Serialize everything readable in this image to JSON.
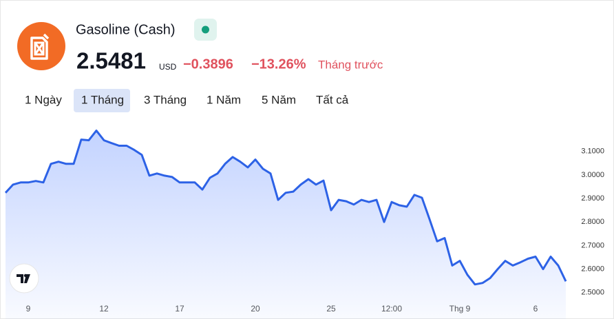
{
  "header": {
    "title": "Gasoline (Cash)",
    "price": "2.5481",
    "currency": "USD",
    "change": "−0.3896",
    "change_percent": "−13.26%",
    "period": "Tháng trước"
  },
  "tabs": [
    "1 Ngày",
    "1 Tháng",
    "3 Tháng",
    "1 Năm",
    "5 Năm",
    "Tất cả"
  ],
  "chart_data": {
    "type": "line",
    "color": "#2d62e6",
    "categories": [
      null,
      null,
      null,
      "9",
      null,
      null,
      null,
      null,
      null,
      null,
      null,
      null,
      null,
      "12",
      null,
      null,
      null,
      null,
      null,
      null,
      null,
      null,
      null,
      "17",
      null,
      null,
      null,
      null,
      null,
      null,
      null,
      null,
      null,
      "20",
      null,
      null,
      null,
      null,
      null,
      null,
      null,
      null,
      null,
      "25",
      null,
      null,
      null,
      null,
      null,
      null,
      null,
      "12:00",
      null,
      null,
      null,
      null,
      null,
      null,
      null,
      null,
      "Thg 9",
      null,
      null,
      null,
      null,
      null,
      null,
      null,
      null,
      null,
      "6",
      null,
      null,
      null,
      null
    ],
    "values": [
      2.924,
      2.959,
      2.968,
      2.968,
      2.974,
      2.968,
      3.047,
      3.056,
      3.047,
      3.047,
      3.15,
      3.147,
      3.188,
      3.147,
      3.135,
      3.124,
      3.124,
      3.106,
      3.085,
      2.997,
      3.006,
      2.997,
      2.991,
      2.968,
      2.968,
      2.968,
      2.938,
      2.988,
      3.006,
      3.047,
      3.076,
      3.056,
      3.032,
      3.065,
      3.026,
      3.006,
      2.894,
      2.924,
      2.929,
      2.959,
      2.982,
      2.959,
      2.976,
      2.85,
      2.894,
      2.888,
      2.874,
      2.894,
      2.885,
      2.894,
      2.8,
      2.885,
      2.871,
      2.865,
      2.915,
      2.903,
      2.812,
      2.718,
      2.732,
      2.615,
      2.635,
      2.576,
      2.535,
      2.541,
      2.562,
      2.6,
      2.635,
      2.615,
      2.629,
      2.644,
      2.653,
      2.6,
      2.653,
      2.615,
      2.5481
    ],
    "ylim": [
      2.47,
      3.26
    ],
    "yticks": [
      {
        "value": 2.5,
        "label": "2.5000"
      },
      {
        "value": 2.6,
        "label": "2.6000"
      },
      {
        "value": 2.7,
        "label": "2.7000"
      },
      {
        "value": 2.8,
        "label": "2.8000"
      },
      {
        "value": 2.9,
        "label": "2.9000"
      },
      {
        "value": 3.0,
        "label": "3.0000"
      },
      {
        "value": 3.1,
        "label": "3.1000"
      }
    ],
    "grid": false
  }
}
